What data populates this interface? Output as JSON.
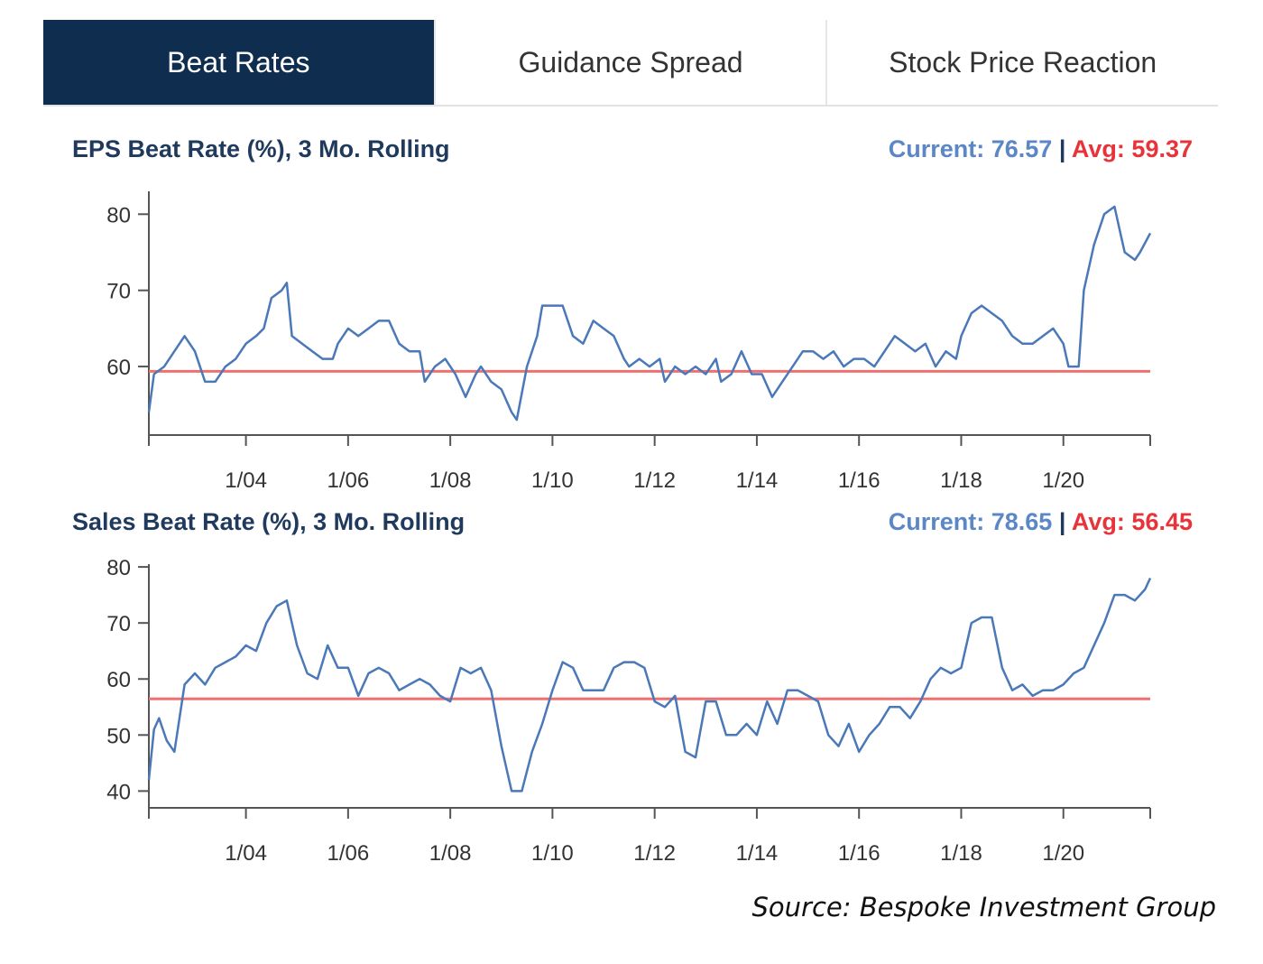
{
  "tabs": [
    {
      "label": "Beat Rates",
      "active": true
    },
    {
      "label": "Guidance Spread",
      "active": false
    },
    {
      "label": "Stock Price Reaction",
      "active": false
    }
  ],
  "source": "Source: Bespoke Investment Group",
  "colors": {
    "line": "#4a78b8",
    "avg_line": "#f07070",
    "current": "#5b87c6",
    "avg_text": "#e8333a",
    "tab_active_bg": "#0f2d4e"
  },
  "chart_data": [
    {
      "type": "line",
      "title": "EPS Beat Rate (%), 3 Mo. Rolling",
      "current_label": "Current:",
      "current": "76.57",
      "separator": "|",
      "avg_label": "Avg:",
      "avg": "59.37",
      "avg_value": 59.37,
      "ylim": [
        51,
        83
      ],
      "yticks": [
        60,
        70,
        80
      ],
      "xlim": [
        2002.1,
        2021.7
      ],
      "xticks": [
        {
          "label": "1/04",
          "value": 2004.0
        },
        {
          "label": "1/06",
          "value": 2006.0
        },
        {
          "label": "1/08",
          "value": 2008.0
        },
        {
          "label": "1/10",
          "value": 2010.0
        },
        {
          "label": "1/12",
          "value": 2012.0
        },
        {
          "label": "1/14",
          "value": 2014.0
        },
        {
          "label": "1/16",
          "value": 2016.0
        },
        {
          "label": "1/18",
          "value": 2018.0
        },
        {
          "label": "1/20",
          "value": 2020.0
        }
      ],
      "grid": false,
      "series": [
        {
          "points": [
            [
              2002.1,
              54
            ],
            [
              2002.2,
              59
            ],
            [
              2002.4,
              60
            ],
            [
              2002.6,
              62
            ],
            [
              2002.8,
              64
            ],
            [
              2003.0,
              62
            ],
            [
              2003.2,
              58
            ],
            [
              2003.4,
              58
            ],
            [
              2003.6,
              60
            ],
            [
              2003.8,
              61
            ],
            [
              2004.0,
              63
            ],
            [
              2004.2,
              64
            ],
            [
              2004.35,
              65
            ],
            [
              2004.5,
              69
            ],
            [
              2004.7,
              70
            ],
            [
              2004.8,
              71
            ],
            [
              2004.9,
              64
            ],
            [
              2005.1,
              63
            ],
            [
              2005.3,
              62
            ],
            [
              2005.5,
              61
            ],
            [
              2005.7,
              61
            ],
            [
              2005.8,
              63
            ],
            [
              2006.0,
              65
            ],
            [
              2006.2,
              64
            ],
            [
              2006.4,
              65
            ],
            [
              2006.6,
              66
            ],
            [
              2006.8,
              66
            ],
            [
              2007.0,
              63
            ],
            [
              2007.2,
              62
            ],
            [
              2007.4,
              62
            ],
            [
              2007.5,
              58
            ],
            [
              2007.7,
              60
            ],
            [
              2007.9,
              61
            ],
            [
              2008.1,
              59
            ],
            [
              2008.3,
              56
            ],
            [
              2008.5,
              59
            ],
            [
              2008.6,
              60
            ],
            [
              2008.8,
              58
            ],
            [
              2009.0,
              57
            ],
            [
              2009.2,
              54
            ],
            [
              2009.3,
              53
            ],
            [
              2009.5,
              60
            ],
            [
              2009.7,
              64
            ],
            [
              2009.8,
              68
            ],
            [
              2010.0,
              68
            ],
            [
              2010.2,
              68
            ],
            [
              2010.4,
              64
            ],
            [
              2010.6,
              63
            ],
            [
              2010.8,
              66
            ],
            [
              2011.0,
              65
            ],
            [
              2011.2,
              64
            ],
            [
              2011.4,
              61
            ],
            [
              2011.5,
              60
            ],
            [
              2011.7,
              61
            ],
            [
              2011.9,
              60
            ],
            [
              2012.1,
              61
            ],
            [
              2012.2,
              58
            ],
            [
              2012.4,
              60
            ],
            [
              2012.6,
              59
            ],
            [
              2012.8,
              60
            ],
            [
              2013.0,
              59
            ],
            [
              2013.2,
              61
            ],
            [
              2013.3,
              58
            ],
            [
              2013.5,
              59
            ],
            [
              2013.7,
              62
            ],
            [
              2013.9,
              59
            ],
            [
              2014.1,
              59
            ],
            [
              2014.3,
              56
            ],
            [
              2014.5,
              58
            ],
            [
              2014.7,
              60
            ],
            [
              2014.9,
              62
            ],
            [
              2015.1,
              62
            ],
            [
              2015.3,
              61
            ],
            [
              2015.5,
              62
            ],
            [
              2015.7,
              60
            ],
            [
              2015.9,
              61
            ],
            [
              2016.1,
              61
            ],
            [
              2016.3,
              60
            ],
            [
              2016.5,
              62
            ],
            [
              2016.7,
              64
            ],
            [
              2016.9,
              63
            ],
            [
              2017.1,
              62
            ],
            [
              2017.3,
              63
            ],
            [
              2017.5,
              60
            ],
            [
              2017.7,
              62
            ],
            [
              2017.9,
              61
            ],
            [
              2018.0,
              64
            ],
            [
              2018.2,
              67
            ],
            [
              2018.4,
              68
            ],
            [
              2018.6,
              67
            ],
            [
              2018.8,
              66
            ],
            [
              2019.0,
              64
            ],
            [
              2019.2,
              63
            ],
            [
              2019.4,
              63
            ],
            [
              2019.6,
              64
            ],
            [
              2019.8,
              65
            ],
            [
              2020.0,
              63
            ],
            [
              2020.1,
              60
            ],
            [
              2020.3,
              60
            ],
            [
              2020.4,
              70
            ],
            [
              2020.6,
              76
            ],
            [
              2020.8,
              80
            ],
            [
              2021.0,
              81
            ],
            [
              2021.1,
              78
            ],
            [
              2021.2,
              75
            ],
            [
              2021.4,
              74
            ],
            [
              2021.5,
              75
            ],
            [
              2021.7,
              77.5
            ]
          ]
        }
      ]
    },
    {
      "type": "line",
      "title": "Sales Beat Rate (%), 3 Mo. Rolling",
      "current_label": "Current:",
      "current": "78.65",
      "separator": "|",
      "avg_label": "Avg:",
      "avg": "56.45",
      "avg_value": 56.45,
      "ylim": [
        37,
        80.5
      ],
      "yticks": [
        40,
        50,
        60,
        70,
        80
      ],
      "xlim": [
        2002.1,
        2021.7
      ],
      "xticks": [
        {
          "label": "1/04",
          "value": 2004.0
        },
        {
          "label": "1/06",
          "value": 2006.0
        },
        {
          "label": "1/08",
          "value": 2008.0
        },
        {
          "label": "1/10",
          "value": 2010.0
        },
        {
          "label": "1/12",
          "value": 2012.0
        },
        {
          "label": "1/14",
          "value": 2014.0
        },
        {
          "label": "1/16",
          "value": 2016.0
        },
        {
          "label": "1/18",
          "value": 2018.0
        },
        {
          "label": "1/20",
          "value": 2020.0
        }
      ],
      "grid": false,
      "series": [
        {
          "points": [
            [
              2002.1,
              42
            ],
            [
              2002.2,
              51
            ],
            [
              2002.3,
              53
            ],
            [
              2002.45,
              49
            ],
            [
              2002.6,
              47
            ],
            [
              2002.8,
              59
            ],
            [
              2003.0,
              61
            ],
            [
              2003.2,
              59
            ],
            [
              2003.4,
              62
            ],
            [
              2003.6,
              63
            ],
            [
              2003.8,
              64
            ],
            [
              2004.0,
              66
            ],
            [
              2004.2,
              65
            ],
            [
              2004.4,
              70
            ],
            [
              2004.6,
              73
            ],
            [
              2004.8,
              74
            ],
            [
              2005.0,
              66
            ],
            [
              2005.2,
              61
            ],
            [
              2005.4,
              60
            ],
            [
              2005.6,
              66
            ],
            [
              2005.8,
              62
            ],
            [
              2006.0,
              62
            ],
            [
              2006.2,
              57
            ],
            [
              2006.4,
              61
            ],
            [
              2006.6,
              62
            ],
            [
              2006.8,
              61
            ],
            [
              2007.0,
              58
            ],
            [
              2007.2,
              59
            ],
            [
              2007.4,
              60
            ],
            [
              2007.6,
              59
            ],
            [
              2007.8,
              57
            ],
            [
              2008.0,
              56
            ],
            [
              2008.2,
              62
            ],
            [
              2008.4,
              61
            ],
            [
              2008.6,
              62
            ],
            [
              2008.8,
              58
            ],
            [
              2009.0,
              48
            ],
            [
              2009.2,
              40
            ],
            [
              2009.4,
              40
            ],
            [
              2009.6,
              47
            ],
            [
              2009.8,
              52
            ],
            [
              2010.0,
              58
            ],
            [
              2010.2,
              63
            ],
            [
              2010.4,
              62
            ],
            [
              2010.6,
              58
            ],
            [
              2010.8,
              58
            ],
            [
              2011.0,
              58
            ],
            [
              2011.2,
              62
            ],
            [
              2011.4,
              63
            ],
            [
              2011.6,
              63
            ],
            [
              2011.8,
              62
            ],
            [
              2012.0,
              56
            ],
            [
              2012.2,
              55
            ],
            [
              2012.4,
              57
            ],
            [
              2012.6,
              47
            ],
            [
              2012.8,
              46
            ],
            [
              2013.0,
              56
            ],
            [
              2013.2,
              56
            ],
            [
              2013.4,
              50
            ],
            [
              2013.6,
              50
            ],
            [
              2013.8,
              52
            ],
            [
              2014.0,
              50
            ],
            [
              2014.2,
              56
            ],
            [
              2014.4,
              52
            ],
            [
              2014.6,
              58
            ],
            [
              2014.8,
              58
            ],
            [
              2015.0,
              57
            ],
            [
              2015.2,
              56
            ],
            [
              2015.4,
              50
            ],
            [
              2015.6,
              48
            ],
            [
              2015.8,
              52
            ],
            [
              2016.0,
              47
            ],
            [
              2016.2,
              50
            ],
            [
              2016.4,
              52
            ],
            [
              2016.6,
              55
            ],
            [
              2016.8,
              55
            ],
            [
              2017.0,
              53
            ],
            [
              2017.2,
              56
            ],
            [
              2017.4,
              60
            ],
            [
              2017.6,
              62
            ],
            [
              2017.8,
              61
            ],
            [
              2018.0,
              62
            ],
            [
              2018.2,
              70
            ],
            [
              2018.4,
              71
            ],
            [
              2018.6,
              71
            ],
            [
              2018.8,
              62
            ],
            [
              2019.0,
              58
            ],
            [
              2019.2,
              59
            ],
            [
              2019.4,
              57
            ],
            [
              2019.6,
              58
            ],
            [
              2019.8,
              58
            ],
            [
              2020.0,
              59
            ],
            [
              2020.2,
              61
            ],
            [
              2020.4,
              62
            ],
            [
              2020.6,
              66
            ],
            [
              2020.8,
              70
            ],
            [
              2021.0,
              75
            ],
            [
              2021.2,
              75
            ],
            [
              2021.4,
              74
            ],
            [
              2021.6,
              76
            ],
            [
              2021.7,
              78
            ]
          ]
        }
      ]
    }
  ]
}
